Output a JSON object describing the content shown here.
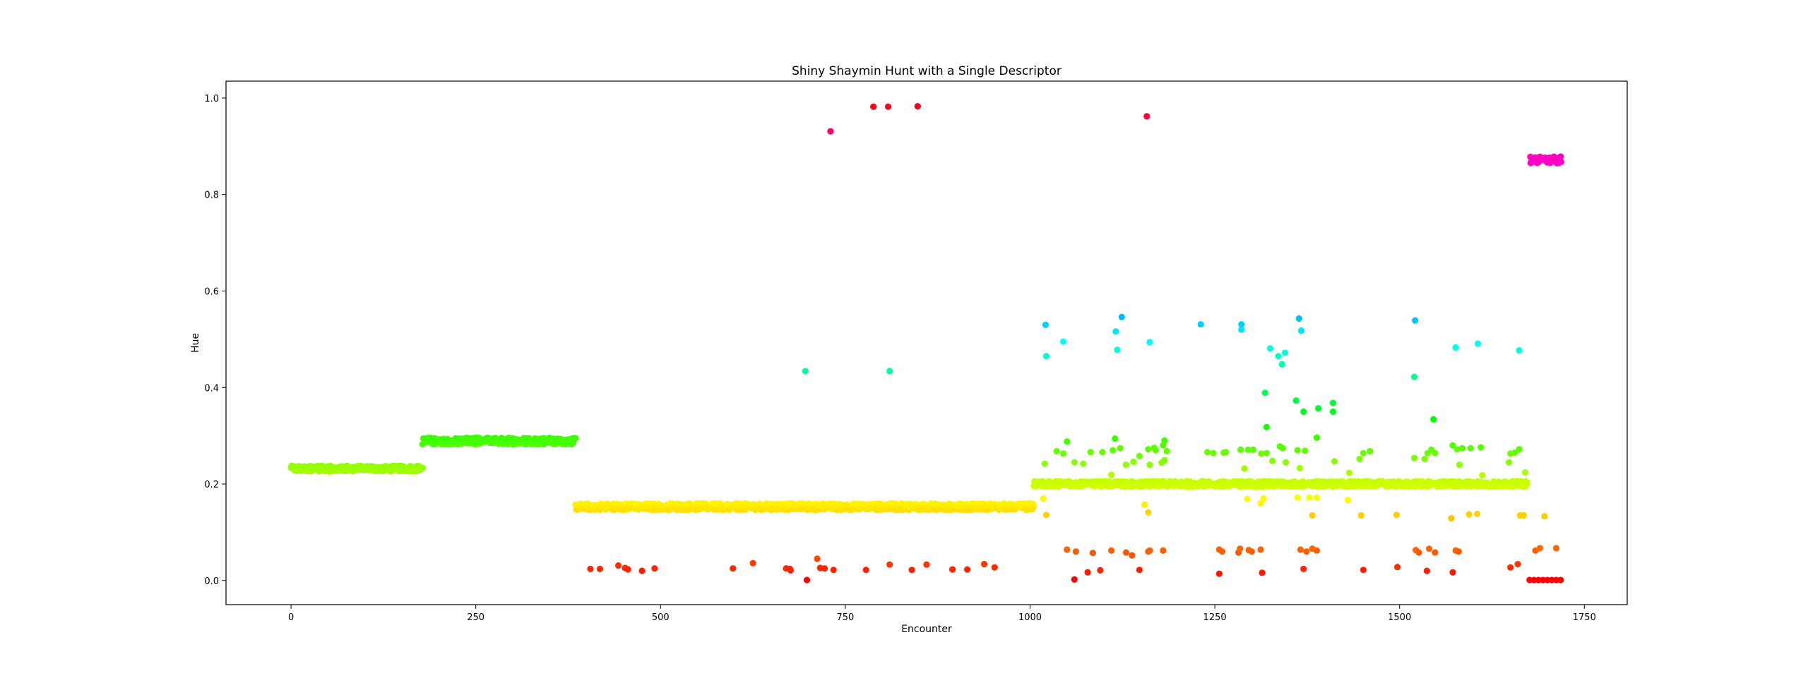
{
  "chart_data": {
    "type": "scatter",
    "title": "Shiny Shaymin Hunt with a Single Descriptor",
    "xlabel": "Encounter",
    "ylabel": "Hue",
    "xlim": [
      -88,
      1808
    ],
    "ylim": [
      -0.05,
      1.035
    ],
    "xticks": [
      0,
      250,
      500,
      750,
      1000,
      1250,
      1500,
      1750
    ],
    "yticks": [
      0.0,
      0.2,
      0.4,
      0.6,
      0.8,
      1.0
    ],
    "ytick_labels": [
      "0.0",
      "0.2",
      "0.4",
      "0.6",
      "0.8",
      "1.0"
    ],
    "grid": false,
    "legend": "none",
    "color_mapping": "marker color = hsv(hue)",
    "bands": [
      {
        "x_start": 0,
        "x_end": 178,
        "hue": 0.232,
        "spread": 0.006
      },
      {
        "x_start": 178,
        "x_end": 385,
        "hue": 0.289,
        "spread": 0.007
      },
      {
        "x_start": 385,
        "x_end": 1005,
        "hue": 0.153,
        "spread": 0.007
      },
      {
        "x_start": 1005,
        "x_end": 1672,
        "hue": 0.2,
        "spread": 0.006
      },
      {
        "x_start": 1677,
        "x_end": 1718,
        "hue": 0.872,
        "spread": 0.007
      }
    ],
    "points": [
      [
        696,
        0.434
      ],
      [
        810,
        0.434
      ],
      [
        730,
        0.931
      ],
      [
        788,
        0.982
      ],
      [
        808,
        0.982
      ],
      [
        848,
        0.983
      ],
      [
        1158,
        0.962
      ],
      [
        405,
        0.024
      ],
      [
        418,
        0.024
      ],
      [
        443,
        0.031
      ],
      [
        452,
        0.026
      ],
      [
        456,
        0.023
      ],
      [
        475,
        0.02
      ],
      [
        492,
        0.025
      ],
      [
        598,
        0.025
      ],
      [
        625,
        0.036
      ],
      [
        670,
        0.025
      ],
      [
        675,
        0.024
      ],
      [
        676,
        0.021
      ],
      [
        698,
        0.001
      ],
      [
        712,
        0.045
      ],
      [
        716,
        0.026
      ],
      [
        722,
        0.025
      ],
      [
        734,
        0.022
      ],
      [
        778,
        0.022
      ],
      [
        810,
        0.033
      ],
      [
        840,
        0.022
      ],
      [
        860,
        0.033
      ],
      [
        895,
        0.023
      ],
      [
        915,
        0.023
      ],
      [
        938,
        0.034
      ],
      [
        952,
        0.027
      ],
      [
        1021,
        0.53
      ],
      [
        1022,
        0.465
      ],
      [
        1045,
        0.495
      ],
      [
        1116,
        0.516
      ],
      [
        1118,
        0.478
      ],
      [
        1124,
        0.546
      ],
      [
        1162,
        0.494
      ],
      [
        1231,
        0.531
      ],
      [
        1286,
        0.531
      ],
      [
        1286,
        0.52
      ],
      [
        1325,
        0.481
      ],
      [
        1341,
        0.448
      ],
      [
        1336,
        0.465
      ],
      [
        1345,
        0.472
      ],
      [
        1364,
        0.543
      ],
      [
        1367,
        0.518
      ],
      [
        1521,
        0.539
      ],
      [
        1520,
        0.422
      ],
      [
        1576,
        0.483
      ],
      [
        1606,
        0.491
      ],
      [
        1662,
        0.477
      ],
      [
        1318,
        0.389
      ],
      [
        1320,
        0.318
      ],
      [
        1360,
        0.373
      ],
      [
        1370,
        0.35
      ],
      [
        1390,
        0.357
      ],
      [
        1410,
        0.368
      ],
      [
        1410,
        0.35
      ],
      [
        1546,
        0.334
      ],
      [
        1388,
        0.296
      ],
      [
        1020,
        0.242
      ],
      [
        1036,
        0.268
      ],
      [
        1045,
        0.263
      ],
      [
        1050,
        0.288
      ],
      [
        1060,
        0.245
      ],
      [
        1072,
        0.242
      ],
      [
        1082,
        0.266
      ],
      [
        1098,
        0.266
      ],
      [
        1110,
        0.219
      ],
      [
        1112,
        0.27
      ],
      [
        1115,
        0.294
      ],
      [
        1122,
        0.274
      ],
      [
        1130,
        0.24
      ],
      [
        1140,
        0.246
      ],
      [
        1148,
        0.258
      ],
      [
        1160,
        0.272
      ],
      [
        1162,
        0.24
      ],
      [
        1168,
        0.275
      ],
      [
        1170,
        0.27
      ],
      [
        1178,
        0.244
      ],
      [
        1180,
        0.28
      ],
      [
        1182,
        0.29
      ],
      [
        1185,
        0.268
      ],
      [
        1182,
        0.249
      ],
      [
        1240,
        0.266
      ],
      [
        1248,
        0.264
      ],
      [
        1262,
        0.265
      ],
      [
        1265,
        0.266
      ],
      [
        1285,
        0.271
      ],
      [
        1290,
        0.232
      ],
      [
        1295,
        0.271
      ],
      [
        1302,
        0.271
      ],
      [
        1313,
        0.263
      ],
      [
        1320,
        0.264
      ],
      [
        1328,
        0.248
      ],
      [
        1338,
        0.278
      ],
      [
        1342,
        0.274
      ],
      [
        1346,
        0.245
      ],
      [
        1362,
        0.27
      ],
      [
        1365,
        0.233
      ],
      [
        1372,
        0.269
      ],
      [
        1412,
        0.247
      ],
      [
        1432,
        0.223
      ],
      [
        1446,
        0.252
      ],
      [
        1451,
        0.264
      ],
      [
        1460,
        0.268
      ],
      [
        1520,
        0.254
      ],
      [
        1534,
        0.252
      ],
      [
        1538,
        0.264
      ],
      [
        1543,
        0.271
      ],
      [
        1548,
        0.264
      ],
      [
        1572,
        0.28
      ],
      [
        1578,
        0.272
      ],
      [
        1581,
        0.24
      ],
      [
        1585,
        0.274
      ],
      [
        1596,
        0.274
      ],
      [
        1610,
        0.276
      ],
      [
        1612,
        0.218
      ],
      [
        1648,
        0.245
      ],
      [
        1650,
        0.263
      ],
      [
        1656,
        0.265
      ],
      [
        1662,
        0.272
      ],
      [
        1670,
        0.224
      ],
      [
        1018,
        0.17
      ],
      [
        1022,
        0.136
      ],
      [
        1155,
        0.157
      ],
      [
        1160,
        0.141
      ],
      [
        1294,
        0.169
      ],
      [
        1312,
        0.16
      ],
      [
        1316,
        0.17
      ],
      [
        1362,
        0.172
      ],
      [
        1378,
        0.172
      ],
      [
        1382,
        0.135
      ],
      [
        1388,
        0.172
      ],
      [
        1430,
        0.167
      ],
      [
        1448,
        0.135
      ],
      [
        1496,
        0.136
      ],
      [
        1570,
        0.129
      ],
      [
        1594,
        0.137
      ],
      [
        1605,
        0.138
      ],
      [
        1663,
        0.135
      ],
      [
        1668,
        0.135
      ],
      [
        1696,
        0.133
      ],
      [
        1050,
        0.064
      ],
      [
        1062,
        0.06
      ],
      [
        1085,
        0.057
      ],
      [
        1110,
        0.062
      ],
      [
        1130,
        0.058
      ],
      [
        1138,
        0.052
      ],
      [
        1160,
        0.06
      ],
      [
        1162,
        0.062
      ],
      [
        1180,
        0.062
      ],
      [
        1256,
        0.064
      ],
      [
        1260,
        0.06
      ],
      [
        1282,
        0.058
      ],
      [
        1284,
        0.066
      ],
      [
        1296,
        0.063
      ],
      [
        1300,
        0.06
      ],
      [
        1312,
        0.064
      ],
      [
        1366,
        0.064
      ],
      [
        1374,
        0.06
      ],
      [
        1382,
        0.066
      ],
      [
        1388,
        0.062
      ],
      [
        1522,
        0.063
      ],
      [
        1526,
        0.058
      ],
      [
        1540,
        0.066
      ],
      [
        1548,
        0.058
      ],
      [
        1576,
        0.062
      ],
      [
        1580,
        0.06
      ],
      [
        1660,
        0.034
      ],
      [
        1684,
        0.062
      ],
      [
        1690,
        0.067
      ],
      [
        1712,
        0.067
      ],
      [
        1060,
        0.002
      ],
      [
        1078,
        0.017
      ],
      [
        1095,
        0.021
      ],
      [
        1148,
        0.022
      ],
      [
        1256,
        0.014
      ],
      [
        1314,
        0.016
      ],
      [
        1370,
        0.024
      ],
      [
        1451,
        0.022
      ],
      [
        1497,
        0.028
      ],
      [
        1537,
        0.02
      ],
      [
        1572,
        0.017
      ],
      [
        1650,
        0.027
      ],
      [
        1676,
        0.001
      ],
      [
        1682,
        0.001
      ],
      [
        1688,
        0.001
      ],
      [
        1694,
        0.001
      ],
      [
        1700,
        0.001
      ],
      [
        1706,
        0.001
      ],
      [
        1712,
        0.001
      ],
      [
        1718,
        0.001
      ]
    ]
  }
}
